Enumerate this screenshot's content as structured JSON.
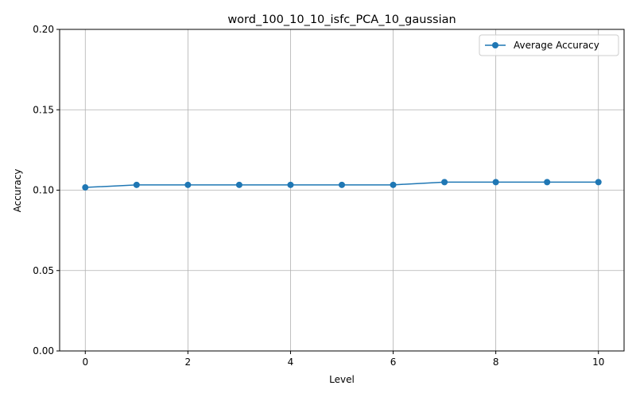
{
  "chart_data": {
    "type": "line",
    "title": "word_100_10_10_isfc_PCA_10_gaussian",
    "xlabel": "Level",
    "ylabel": "Accuracy",
    "xlim": [
      -0.5,
      10.5
    ],
    "ylim": [
      0.0,
      0.2
    ],
    "xticks": [
      0,
      2,
      4,
      6,
      8,
      10
    ],
    "xtick_labels": [
      "0",
      "2",
      "4",
      "6",
      "8",
      "10"
    ],
    "yticks": [
      0.0,
      0.05,
      0.1,
      0.15,
      0.2
    ],
    "ytick_labels": [
      "0.00",
      "0.05",
      "0.10",
      "0.15",
      "0.20"
    ],
    "grid": true,
    "legend_position": "top-right",
    "series": [
      {
        "name": "Average Accuracy",
        "color": "#1f77b4",
        "marker": "circle",
        "x": [
          0,
          1,
          2,
          3,
          4,
          5,
          6,
          7,
          8,
          9,
          10
        ],
        "y": [
          0.1017,
          0.1033,
          0.1033,
          0.1033,
          0.1033,
          0.1033,
          0.1033,
          0.105,
          0.105,
          0.105,
          0.105
        ]
      }
    ]
  }
}
